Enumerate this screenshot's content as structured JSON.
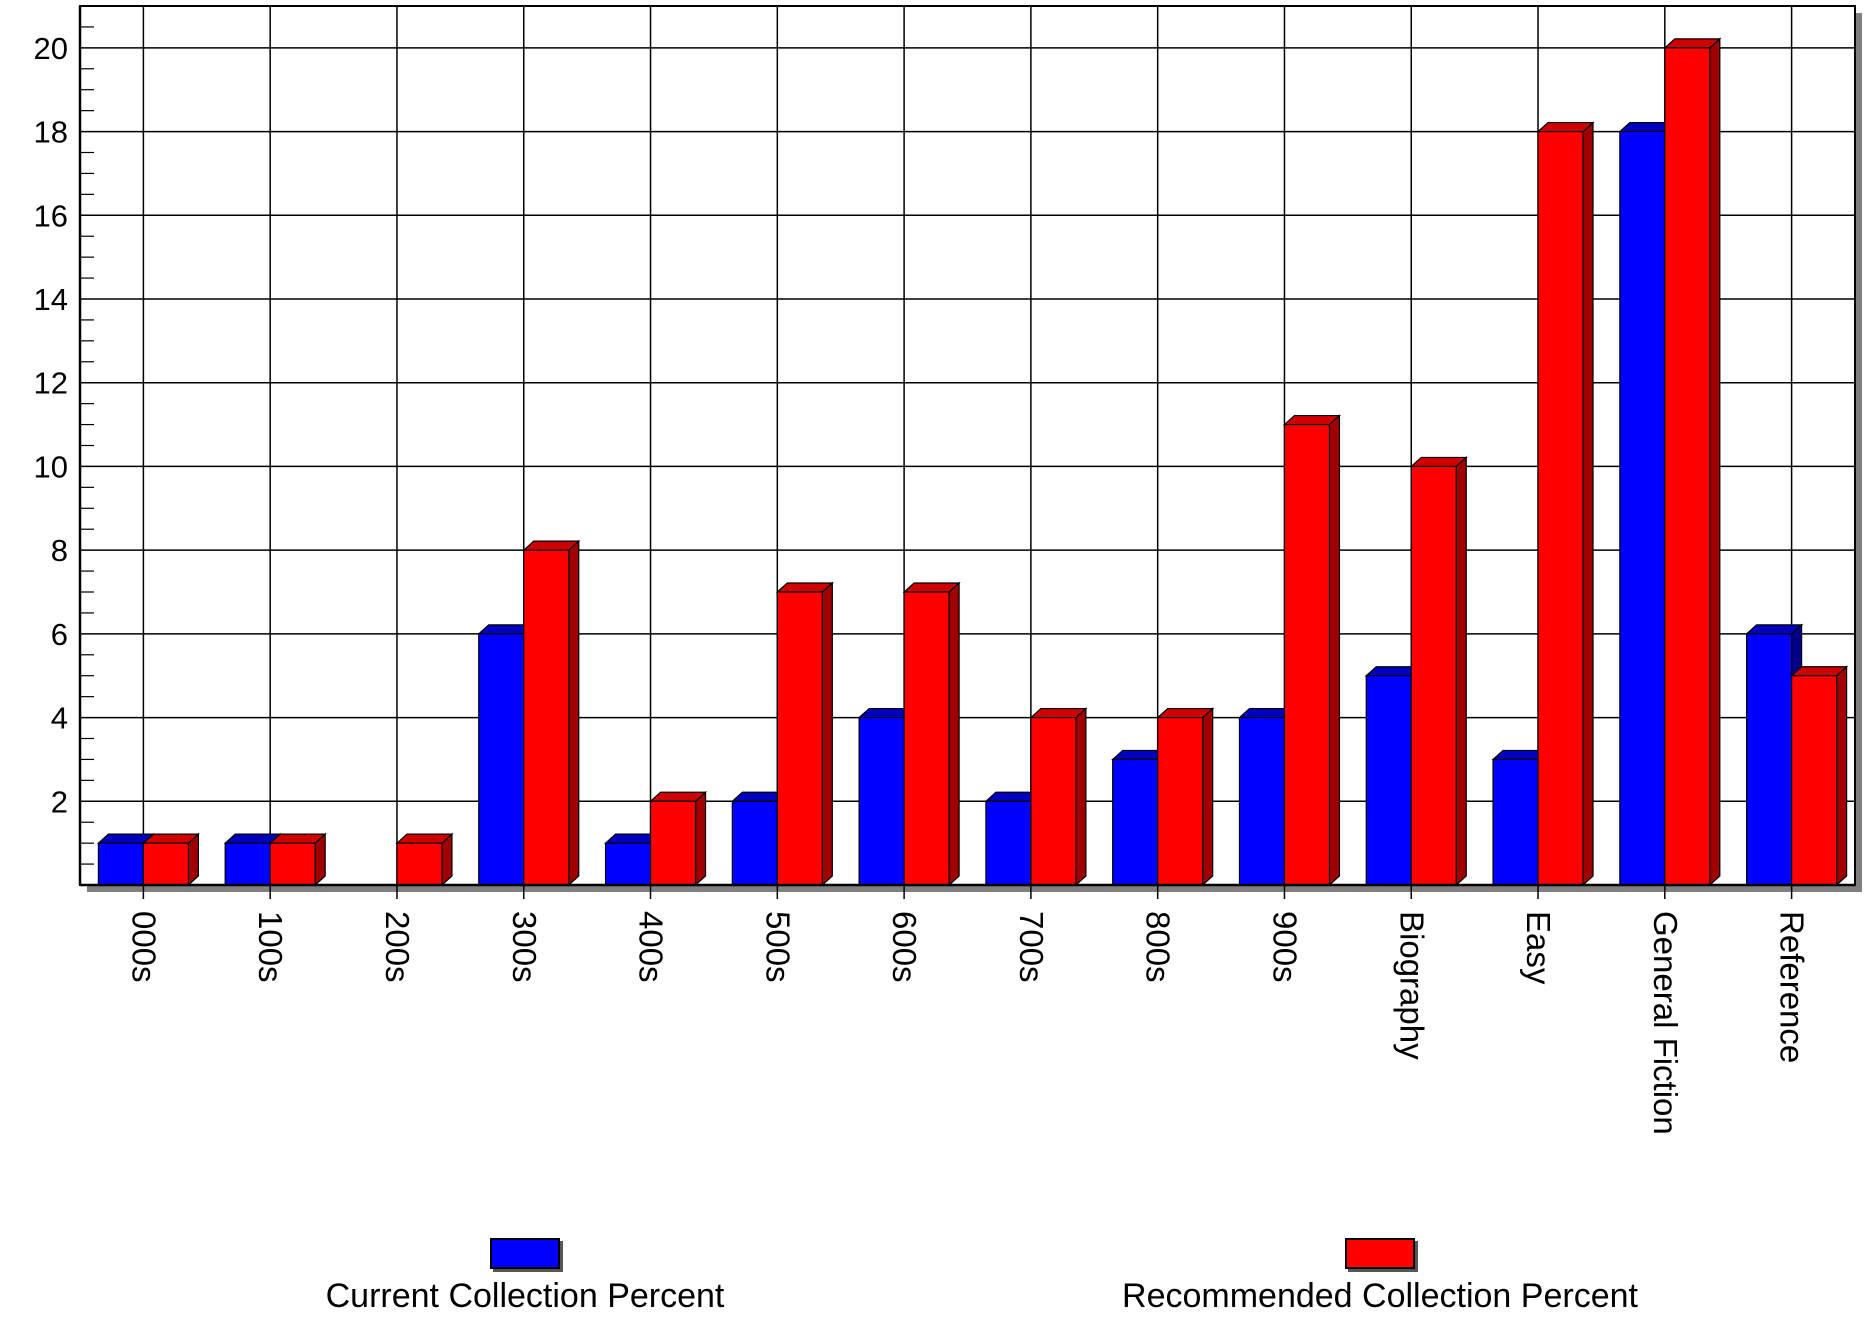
{
  "chart_data": {
    "type": "bar",
    "categories": [
      "000s",
      "100s",
      "200s",
      "300s",
      "400s",
      "500s",
      "600s",
      "700s",
      "800s",
      "900s",
      "Biography",
      "Easy",
      "General Fiction",
      "Reference"
    ],
    "series": [
      {
        "name": "Current Collection Percent",
        "color": "#0000ff",
        "values": [
          1,
          1,
          0,
          6,
          1,
          2,
          4,
          2,
          3,
          4,
          5,
          3,
          18,
          6
        ]
      },
      {
        "name": "Recommended Collection Percent",
        "color": "#ff0000",
        "values": [
          1,
          1,
          1,
          8,
          2,
          7,
          7,
          4,
          4,
          11,
          10,
          18,
          20,
          5
        ]
      }
    ],
    "yticks": [
      "2",
      "4",
      "6",
      "8",
      "10",
      "12",
      "14",
      "16",
      "18",
      "20"
    ],
    "ylim": [
      0,
      21
    ],
    "grid": true,
    "legend_position": "bottom",
    "title": "",
    "xlabel": "",
    "ylabel": ""
  }
}
